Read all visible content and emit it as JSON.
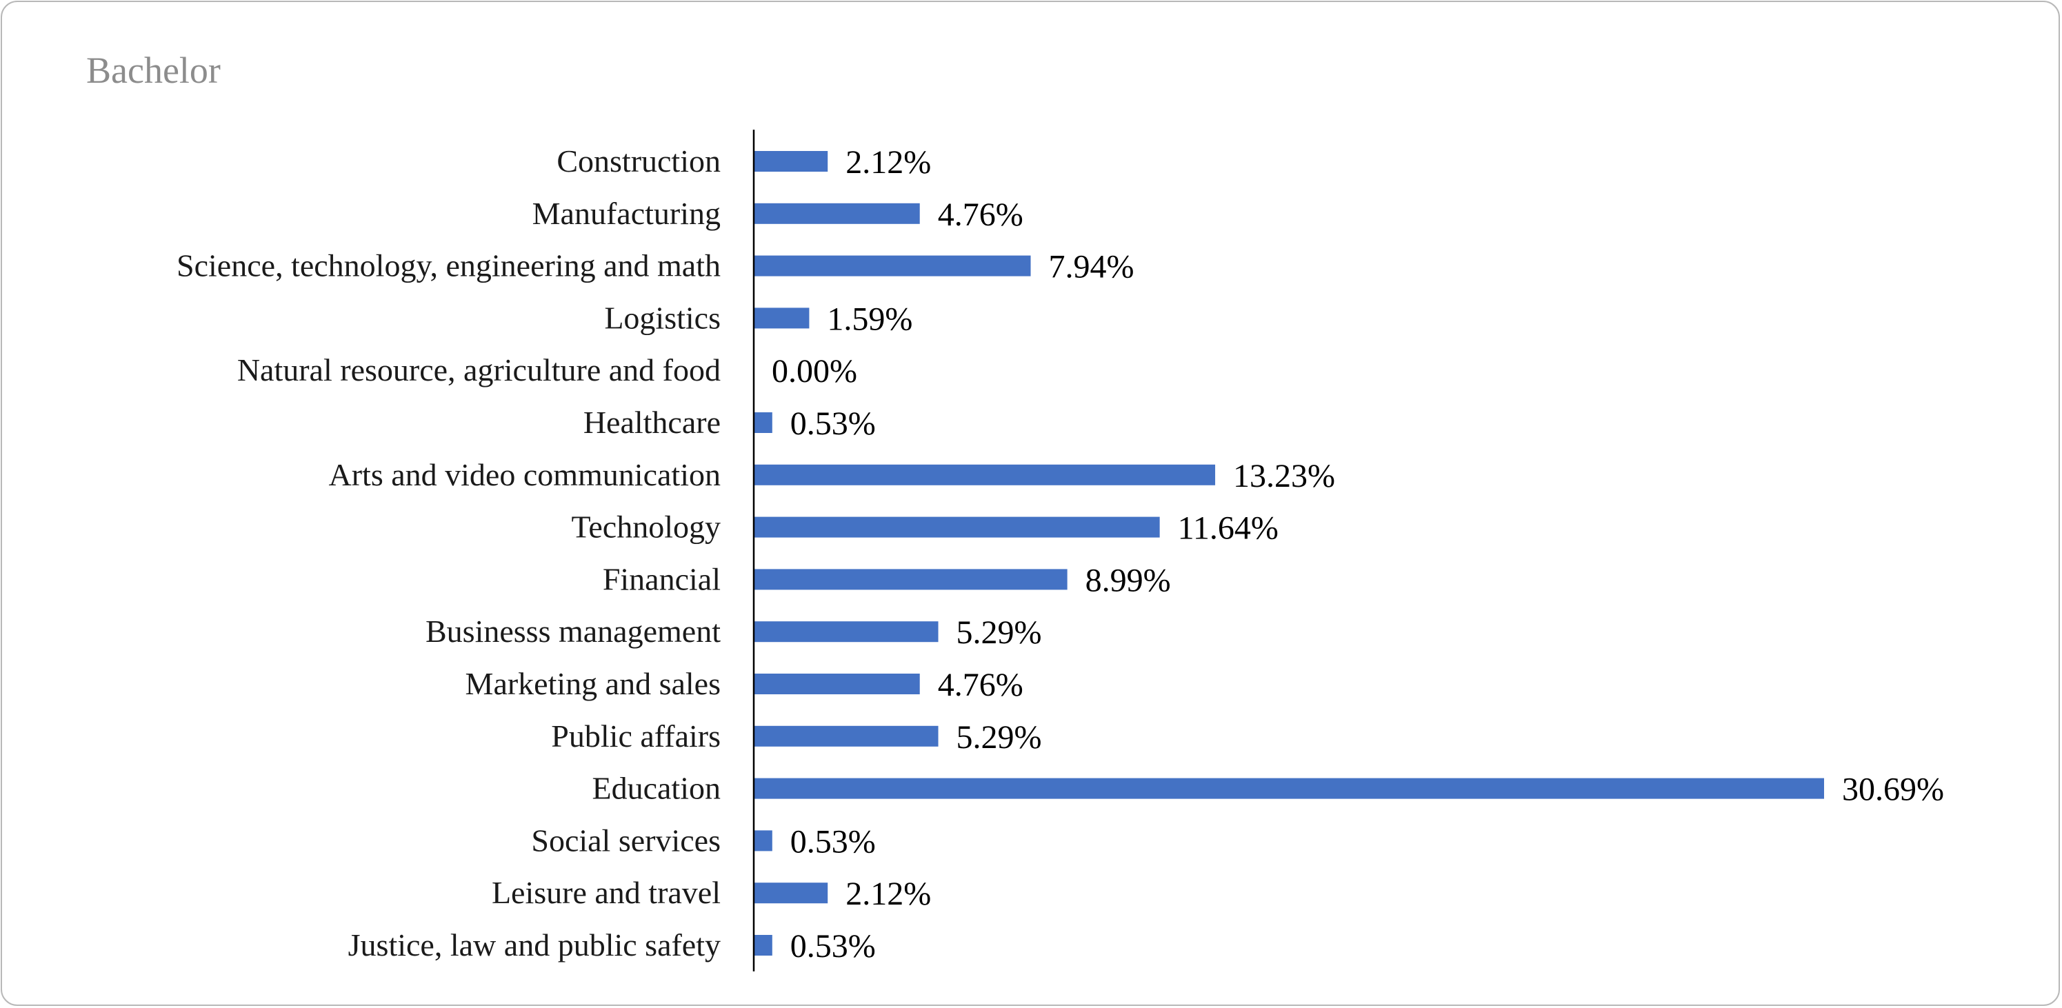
{
  "chart_data": {
    "type": "bar",
    "orientation": "horizontal",
    "title": "Bachelor",
    "xlabel": "",
    "ylabel": "",
    "xlim": [
      0,
      30.69
    ],
    "grid": false,
    "legend": "none",
    "bar_color": "#4472c4",
    "categories": [
      "Construction",
      "Manufacturing",
      "Science, technology, engineering and math",
      "Logistics",
      "Natural resource, agriculture and food",
      "Healthcare",
      "Arts and video communication",
      "Technology",
      "Financial",
      "Businesss management",
      "Marketing and sales",
      "Public affairs",
      "Education",
      "Social services",
      "Leisure and travel",
      "Justice, law and public safety"
    ],
    "values": [
      2.12,
      4.76,
      7.94,
      1.59,
      0.0,
      0.53,
      13.23,
      11.64,
      8.99,
      5.29,
      4.76,
      5.29,
      30.69,
      0.53,
      2.12,
      0.53
    ],
    "value_labels": [
      "2.12%",
      "4.76%",
      "7.94%",
      "1.59%",
      "0.00%",
      "0.53%",
      "13.23%",
      "11.64%",
      "8.99%",
      "5.29%",
      "4.76%",
      "5.29%",
      "30.69%",
      "0.53%",
      "2.12%",
      "0.53%"
    ]
  }
}
